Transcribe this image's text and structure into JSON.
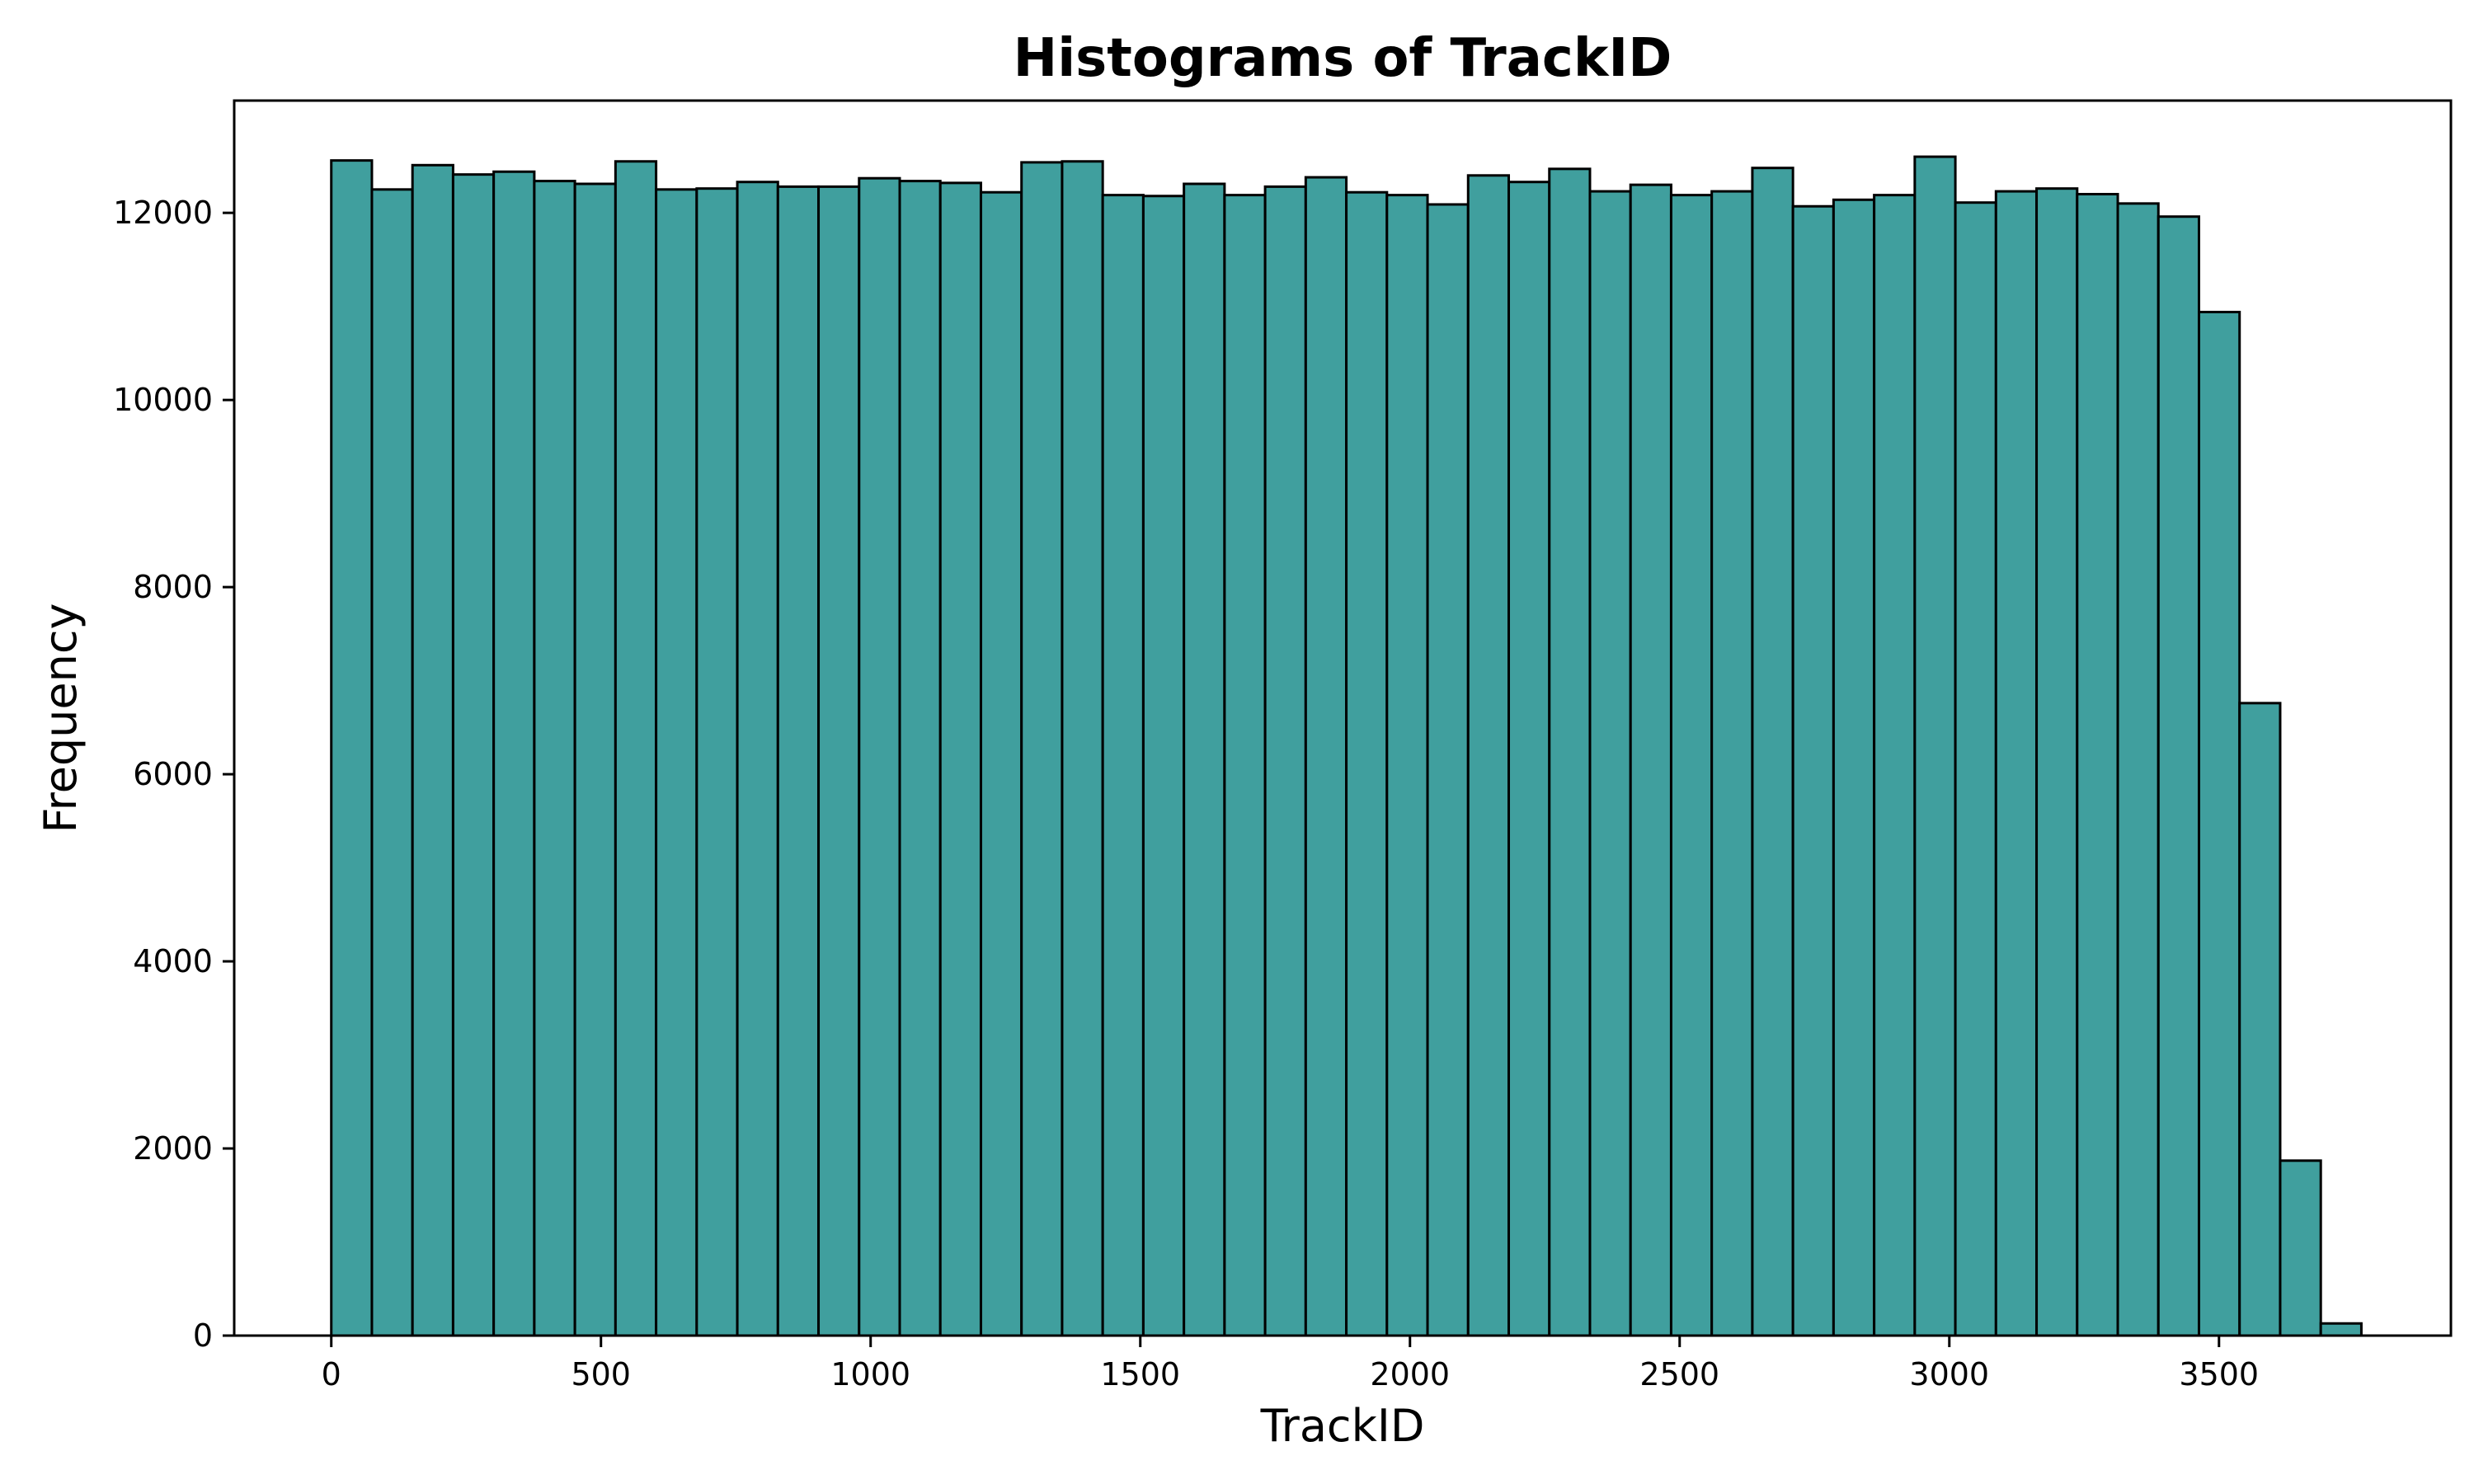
{
  "chart_data": {
    "type": "bar",
    "title": "Histograms of TrackID",
    "xlabel": "TrackID",
    "ylabel": "Frequency",
    "xlim": [
      -180,
      3930
    ],
    "ylim": [
      0,
      13200
    ],
    "bar_color": "#409F9E",
    "grid": false,
    "x_ticks": [
      0,
      500,
      1000,
      1500,
      2000,
      2500,
      3000,
      3500
    ],
    "y_ticks": [
      0,
      2000,
      4000,
      6000,
      8000,
      10000,
      12000
    ],
    "bin_start": 0,
    "bin_end": 3764,
    "values": [
      12560,
      12250,
      12510,
      12410,
      12440,
      12340,
      12310,
      12550,
      12250,
      12260,
      12330,
      12280,
      12280,
      12370,
      12340,
      12320,
      12220,
      12540,
      12550,
      12190,
      12180,
      12310,
      12190,
      12280,
      12380,
      12220,
      12190,
      12090,
      12400,
      12330,
      12470,
      12230,
      12300,
      12190,
      12230,
      12480,
      12070,
      12140,
      12190,
      12600,
      12110,
      12230,
      12260,
      12200,
      12100,
      11960,
      10940,
      6760,
      1870,
      130
    ]
  }
}
